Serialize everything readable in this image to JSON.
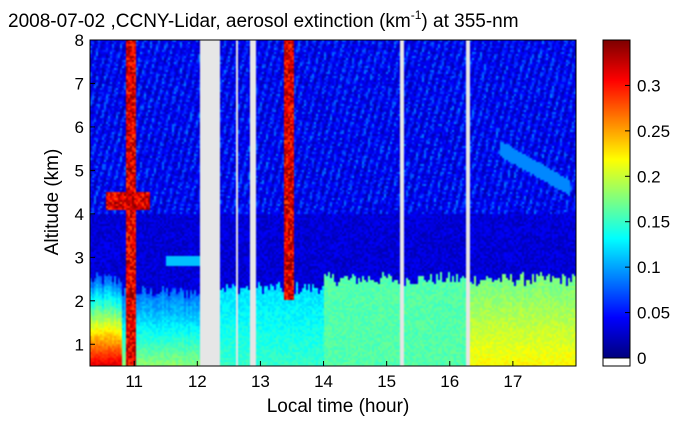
{
  "chart_data": {
    "type": "heatmap",
    "title_main": "2008-07-02 ,CCNY-Lidar, aerosol extinction (km",
    "title_sup": "-1",
    "title_tail": ") at 355-nm",
    "xlabel": "Local time (hour)",
    "ylabel": "Altitude (km)",
    "xlim": [
      10.3,
      18.0
    ],
    "ylim": [
      0.5,
      8.0
    ],
    "x_ticks": [
      "11",
      "12",
      "13",
      "14",
      "15",
      "16",
      "17"
    ],
    "y_ticks": [
      "1",
      "2",
      "3",
      "4",
      "5",
      "6",
      "7",
      "8"
    ],
    "colorbar": {
      "range": [
        0,
        0.35
      ],
      "ticks": [
        "0",
        "0.05",
        "0.1",
        "0.15",
        "0.2",
        "0.25",
        "0.3"
      ],
      "colormap": "jet"
    },
    "no_data_color": "#e6e6e6",
    "data_gaps_hours": [
      [
        12.05,
        12.35
      ],
      [
        12.6,
        12.65
      ],
      [
        12.85,
        12.92
      ],
      [
        15.22,
        15.28
      ],
      [
        16.25,
        16.32
      ]
    ],
    "profile_segments": [
      {
        "from": 10.3,
        "to": 10.8,
        "boundary_layer_top_km": 2.5,
        "surface_extinction": 0.32,
        "bl_extinction": 0.07
      },
      {
        "from": 10.8,
        "to": 12.05,
        "boundary_layer_top_km": 2.2,
        "surface_extinction": 0.18,
        "bl_extinction": 0.08
      },
      {
        "from": 12.35,
        "to": 14.0,
        "boundary_layer_top_km": 2.3,
        "surface_extinction": 0.15,
        "bl_extinction": 0.12
      },
      {
        "from": 14.0,
        "to": 16.25,
        "boundary_layer_top_km": 2.5,
        "surface_extinction": 0.16,
        "bl_extinction": 0.16
      },
      {
        "from": 16.32,
        "to": 18.0,
        "boundary_layer_top_km": 2.5,
        "surface_extinction": 0.22,
        "bl_extinction": 0.17
      }
    ],
    "cloud_features": [
      {
        "time_hour": 10.95,
        "altitude_range_km": [
          0.5,
          8.0
        ],
        "extinction": 0.35
      },
      {
        "time_hour": 10.9,
        "altitude_range_km": [
          4.1,
          4.5
        ],
        "extinction": 0.35
      },
      {
        "time_hour": 13.45,
        "altitude_range_km": [
          2.0,
          8.0
        ],
        "extinction": 0.35
      }
    ],
    "aerosol_layers": [
      {
        "time_range_hours": [
          11.5,
          12.2
        ],
        "altitude_km": 2.9,
        "extinction": 0.11
      },
      {
        "time_range_hours": [
          16.8,
          17.9
        ],
        "altitude_range_km": [
          4.6,
          5.5
        ],
        "extinction": 0.09
      }
    ]
  }
}
